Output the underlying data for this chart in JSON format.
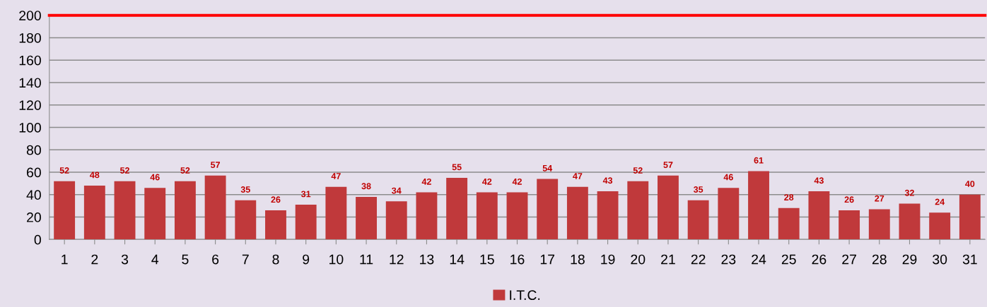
{
  "chart_data": {
    "type": "bar",
    "categories": [
      "1",
      "2",
      "3",
      "4",
      "5",
      "6",
      "7",
      "8",
      "9",
      "10",
      "11",
      "12",
      "13",
      "14",
      "15",
      "16",
      "17",
      "18",
      "19",
      "20",
      "21",
      "22",
      "23",
      "24",
      "25",
      "26",
      "27",
      "28",
      "29",
      "30",
      "31"
    ],
    "series": [
      {
        "name": "I.T.C.",
        "color": "#c0393b",
        "values": [
          52,
          48,
          52,
          46,
          52,
          57,
          35,
          26,
          31,
          47,
          38,
          34,
          42,
          55,
          42,
          42,
          54,
          47,
          43,
          52,
          57,
          35,
          46,
          61,
          28,
          43,
          26,
          27,
          32,
          24,
          40
        ]
      }
    ],
    "ylim": [
      0,
      200
    ],
    "yticks": [
      0,
      20,
      40,
      60,
      80,
      100,
      120,
      140,
      160,
      180,
      200
    ],
    "ref_lines": [
      {
        "axis": "y",
        "value": 200,
        "color": "#ff0000"
      }
    ],
    "data_labels": true,
    "grid": "y",
    "legend": "bottom"
  }
}
